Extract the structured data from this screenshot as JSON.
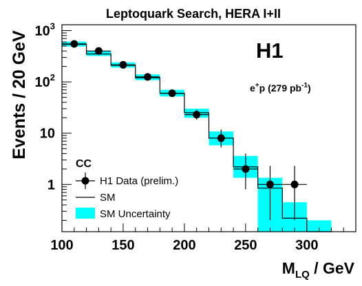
{
  "chart_data": {
    "type": "bar",
    "title": "Leptoquark Search, HERA I+II",
    "experiment_label": "H1",
    "channel_label": {
      "base": "e",
      "sup_charge": "+",
      "mid": "p (279 pb",
      "sup_exp": "-1",
      "end": ")"
    },
    "xlabel": {
      "main": "M",
      "sub": "LQ",
      "unit": " / GeV"
    },
    "ylabel": "Events / 20 GeV",
    "xlim": [
      100,
      340
    ],
    "ylim": [
      0.12,
      1300
    ],
    "y_scale": "log",
    "x_ticks": [
      100,
      150,
      200,
      250,
      300
    ],
    "x_tick_labels": [
      "100",
      "150",
      "200",
      "250",
      "300"
    ],
    "y_major_ticks": [
      {
        "value": 1,
        "label": "1"
      },
      {
        "value": 10,
        "label": "10"
      },
      {
        "value": 100,
        "label": "10",
        "sup": "2"
      },
      {
        "value": 1000,
        "label": "10",
        "sup": "3"
      }
    ],
    "bin_edges": [
      100,
      120,
      140,
      160,
      180,
      200,
      220,
      240,
      260,
      280,
      300,
      320
    ],
    "sm_values": [
      540,
      350,
      210,
      120,
      60,
      25,
      8,
      2.2,
      0.85,
      0.22,
      0.06
    ],
    "sm_uncertainty": {
      "lower": [
        490,
        320,
        190,
        108,
        52,
        20,
        5.8,
        1.35,
        0.1,
        0.1,
        0.1
      ],
      "upper": [
        610,
        400,
        240,
        140,
        70,
        30,
        10.8,
        3.6,
        1.35,
        0.45,
        0.2
      ]
    },
    "data": {
      "x": [
        110,
        130,
        150,
        170,
        190,
        210,
        230,
        250,
        270,
        290
      ],
      "y": [
        550,
        400,
        215,
        125,
        60,
        23,
        8,
        2,
        1,
        1
      ],
      "err_low": [
        25,
        20,
        15,
        11,
        8,
        4.6,
        2.7,
        1.2,
        0.8,
        0.8
      ],
      "err_high": [
        25,
        20,
        15,
        11,
        8,
        5.5,
        3.8,
        2.0,
        1.3,
        1.3
      ],
      "x_half_width": 10
    },
    "legend": {
      "placement": "bottom-left",
      "header": "CC",
      "entries": [
        "H1 Data (prelim.)",
        "SM",
        "SM Uncertainty"
      ]
    },
    "colors": {
      "uncertainty_band": "#00ffff",
      "sm_line": "#000000",
      "data_marker": "#000000",
      "frame": "#000000"
    }
  }
}
